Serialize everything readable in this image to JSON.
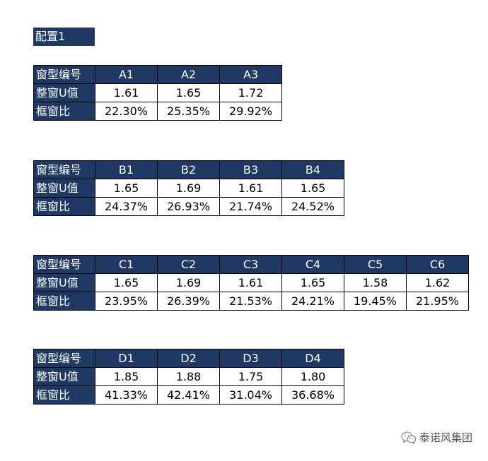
{
  "config_title": "配置1",
  "row_labels": {
    "model": "窗型编号",
    "u_value": "整窗U值",
    "frame_ratio": "框窗比"
  },
  "tables": [
    {
      "models": [
        "A1",
        "A2",
        "A3"
      ],
      "u_values": [
        "1.61",
        "1.65",
        "1.72"
      ],
      "frame_ratios": [
        "22.30%",
        "25.35%",
        "29.92%"
      ]
    },
    {
      "models": [
        "B1",
        "B2",
        "B3",
        "B4"
      ],
      "u_values": [
        "1.65",
        "1.69",
        "1.61",
        "1.65"
      ],
      "frame_ratios": [
        "24.37%",
        "26.93%",
        "21.74%",
        "24.52%"
      ]
    },
    {
      "models": [
        "C1",
        "C2",
        "C3",
        "C4",
        "C5",
        "C6"
      ],
      "u_values": [
        "1.65",
        "1.69",
        "1.61",
        "1.65",
        "1.58",
        "1.62"
      ],
      "frame_ratios": [
        "23.95%",
        "26.39%",
        "21.53%",
        "24.21%",
        "19.45%",
        "21.95%"
      ]
    },
    {
      "models": [
        "D1",
        "D2",
        "D3",
        "D4"
      ],
      "u_values": [
        "1.85",
        "1.88",
        "1.75",
        "1.80"
      ],
      "frame_ratios": [
        "41.33%",
        "42.41%",
        "31.04%",
        "36.68%"
      ]
    }
  ],
  "watermark": {
    "text": "泰诺风集团",
    "icon": "wechat-icon"
  },
  "colors": {
    "header_bg": "#1f3864",
    "header_text": "#ffffff"
  }
}
